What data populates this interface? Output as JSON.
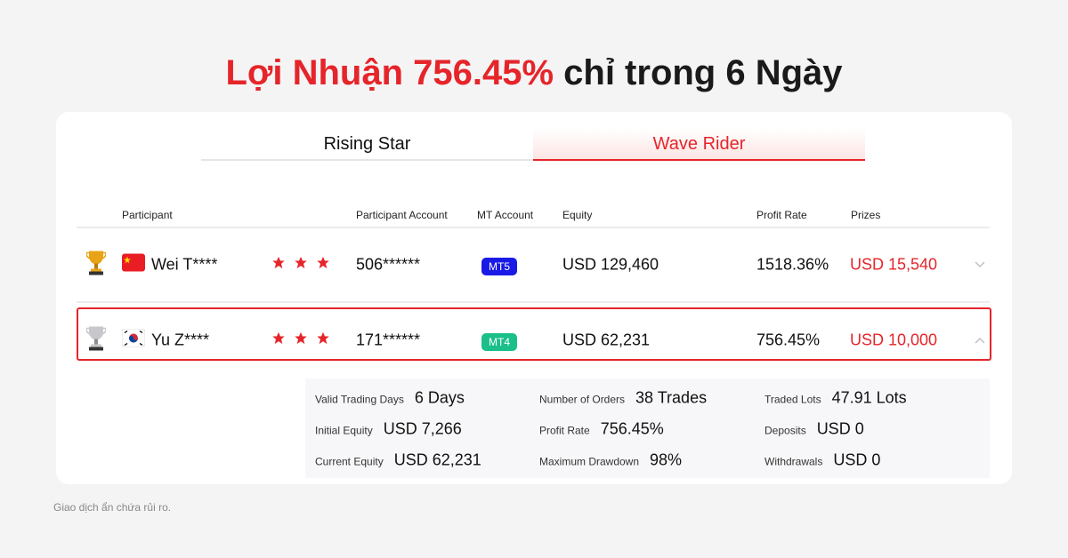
{
  "headline": {
    "highlight": "Lợi Nhuận 756.45%",
    "rest": " chỉ trong 6 Ngày"
  },
  "tabs": [
    {
      "label": "Rising Star",
      "active": false
    },
    {
      "label": "Wave Rider",
      "active": true
    }
  ],
  "columns": [
    "Participant",
    "Participant Account",
    "MT Account",
    "Equity",
    "Profit Rate",
    "Prizes"
  ],
  "rows": [
    {
      "rank_icon": "gold-trophy-icon",
      "flag": "china-flag-icon",
      "name": "Wei T****",
      "stars": 3,
      "account": "506******",
      "mt": "MT5",
      "mt_color": "#1a1ae6",
      "equity": "USD 129,460",
      "profit_rate": "1518.36%",
      "prize": "USD 15,540",
      "expanded": false
    },
    {
      "rank_icon": "silver-trophy-icon",
      "flag": "korea-flag-icon",
      "name": "Yu Z****",
      "stars": 3,
      "account": "171******",
      "mt": "MT4",
      "mt_color": "#1bbf8a",
      "equity": "USD 62,231",
      "profit_rate": "756.45%",
      "prize": "USD 10,000",
      "expanded": true
    }
  ],
  "details": [
    [
      {
        "label": "Valid Trading Days",
        "value": "6 Days"
      },
      {
        "label": "Initial Equity",
        "value": "USD 7,266"
      },
      {
        "label": "Current Equity",
        "value": "USD 62,231"
      }
    ],
    [
      {
        "label": "Number of Orders",
        "value": "38 Trades"
      },
      {
        "label": "Profit Rate",
        "value": "756.45%"
      },
      {
        "label": "Maximum Drawdown",
        "value": "98%"
      }
    ],
    [
      {
        "label": "Traded Lots",
        "value": "47.91 Lots"
      },
      {
        "label": "Deposits",
        "value": "USD 0"
      },
      {
        "label": "Withdrawals",
        "value": "USD 0"
      }
    ]
  ],
  "footer": "Giao dịch ẩn chứa rủi ro.",
  "colors": {
    "accent": "#e5252a"
  }
}
